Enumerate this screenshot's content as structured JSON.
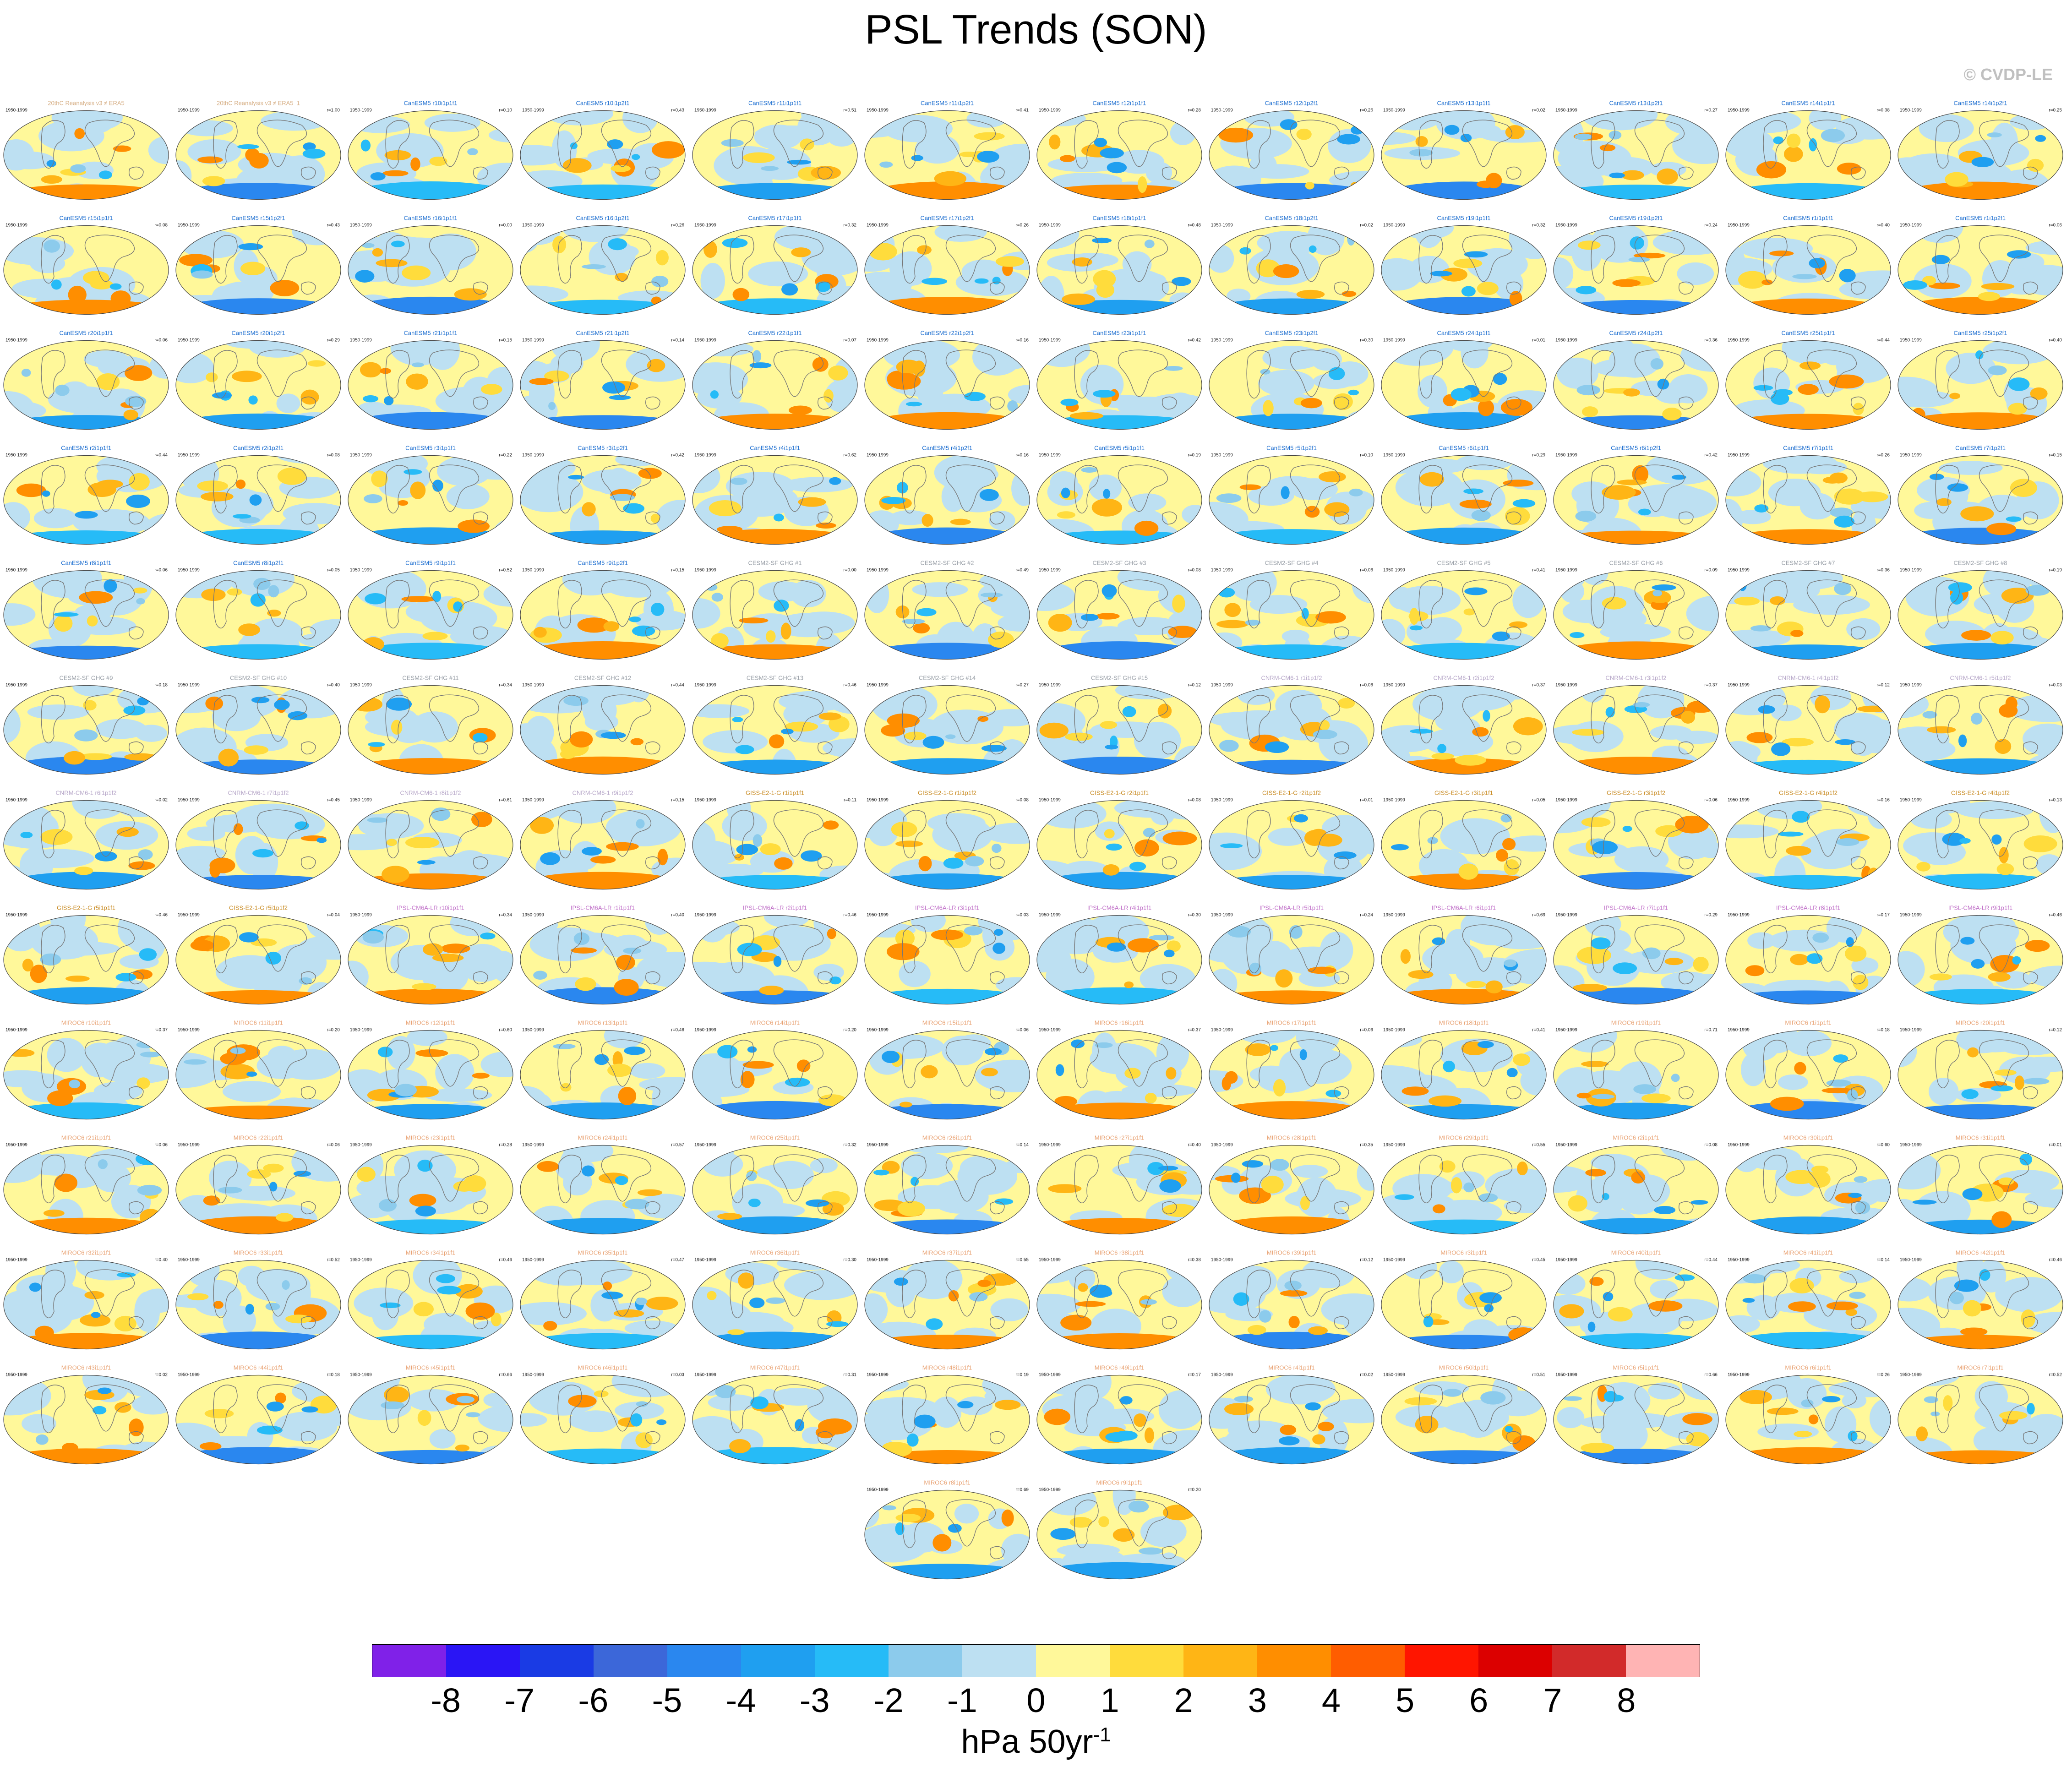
{
  "title": "PSL Trends (SON)",
  "credit": "© CVDP-LE",
  "colorbar": {
    "colors": [
      "#8021e8",
      "#2a15f5",
      "#1a3be4",
      "#3c67d9",
      "#2a87ef",
      "#1f9ff0",
      "#26bbf7",
      "#8ccbec",
      "#bde0f2",
      "#fff89a",
      "#ffdc3c",
      "#ffb515",
      "#ff8e00",
      "#ff5d00",
      "#ff1500",
      "#dc0000",
      "#d22a2a",
      "#ffb4b4"
    ],
    "ticks": [
      "-8",
      "-7",
      "-6",
      "-5",
      "-4",
      "-3",
      "-2",
      "-1",
      "0",
      "1",
      "2",
      "3",
      "4",
      "5",
      "6",
      "7",
      "8"
    ],
    "units_base": "hPa 50yr",
    "units_exp": "-1"
  },
  "chart_data": {
    "type": "heatmap",
    "title": "PSL Trends (SON)",
    "period": "1950-1999",
    "color_scale": {
      "min": -8,
      "max": 8,
      "step": 1,
      "units": "hPa 50yr-1"
    },
    "panels": [
      {
        "name": "20thC Reanalysis v3 ≠ ERA5",
        "r": ""
      },
      {
        "name": "20thC Reanalysis v3 ≠ ERA5_1",
        "r": "r=1.00"
      },
      {
        "name": "CanESM5 r10i1p1f1",
        "r": "r=0.10"
      },
      {
        "name": "CanESM5 r10i1p2f1",
        "r": "r=0.43"
      },
      {
        "name": "CanESM5 r11i1p1f1",
        "r": "r=0.51"
      },
      {
        "name": "CanESM5 r11i1p2f1",
        "r": "r=0.41"
      },
      {
        "name": "CanESM5 r12i1p1f1",
        "r": "r=0.28"
      },
      {
        "name": "CanESM5 r12i1p2f1",
        "r": "r=0.26"
      },
      {
        "name": "CanESM5 r13i1p1f1",
        "r": "r=0.02"
      },
      {
        "name": "CanESM5 r13i1p2f1",
        "r": "r=0.27"
      },
      {
        "name": "CanESM5 r14i1p1f1",
        "r": "r=0.38"
      },
      {
        "name": "CanESM5 r14i1p2f1",
        "r": "r=0.25"
      },
      {
        "name": "CanESM5 r15i1p1f1",
        "r": "r=0.08"
      },
      {
        "name": "CanESM5 r15i1p2f1",
        "r": "r=0.43"
      },
      {
        "name": "CanESM5 r16i1p1f1",
        "r": "r=0.00"
      },
      {
        "name": "CanESM5 r16i1p2f1",
        "r": "r=0.26"
      },
      {
        "name": "CanESM5 r17i1p1f1",
        "r": "r=0.32"
      },
      {
        "name": "CanESM5 r17i1p2f1",
        "r": "r=0.26"
      },
      {
        "name": "CanESM5 r18i1p1f1",
        "r": "r=0.48"
      },
      {
        "name": "CanESM5 r18i1p2f1",
        "r": "r=0.02"
      },
      {
        "name": "CanESM5 r19i1p1f1",
        "r": "r=0.32"
      },
      {
        "name": "CanESM5 r19i1p2f1",
        "r": "r=0.24"
      },
      {
        "name": "CanESM5 r1i1p1f1",
        "r": "r=0.40"
      },
      {
        "name": "CanESM5 r1i1p2f1",
        "r": "r=0.06"
      },
      {
        "name": "CanESM5 r20i1p1f1",
        "r": "r=0.06"
      },
      {
        "name": "CanESM5 r20i1p2f1",
        "r": "r=0.29"
      },
      {
        "name": "CanESM5 r21i1p1f1",
        "r": "r=0.15"
      },
      {
        "name": "CanESM5 r21i1p2f1",
        "r": "r=0.14"
      },
      {
        "name": "CanESM5 r22i1p1f1",
        "r": "r=0.07"
      },
      {
        "name": "CanESM5 r22i1p2f1",
        "r": "r=0.16"
      },
      {
        "name": "CanESM5 r23i1p1f1",
        "r": "r=0.42"
      },
      {
        "name": "CanESM5 r23i1p2f1",
        "r": "r=0.30"
      },
      {
        "name": "CanESM5 r24i1p1f1",
        "r": "r=0.01"
      },
      {
        "name": "CanESM5 r24i1p2f1",
        "r": "r=0.36"
      },
      {
        "name": "CanESM5 r25i1p1f1",
        "r": "r=0.44"
      },
      {
        "name": "CanESM5 r25i1p2f1",
        "r": "r=0.40"
      },
      {
        "name": "CanESM5 r2i1p1f1",
        "r": "r=0.44"
      },
      {
        "name": "CanESM5 r2i1p2f1",
        "r": "r=0.08"
      },
      {
        "name": "CanESM5 r3i1p1f1",
        "r": "r=0.22"
      },
      {
        "name": "CanESM5 r3i1p2f1",
        "r": "r=0.42"
      },
      {
        "name": "CanESM5 r4i1p1f1",
        "r": "r=0.62"
      },
      {
        "name": "CanESM5 r4i1p2f1",
        "r": "r=0.16"
      },
      {
        "name": "CanESM5 r5i1p1f1",
        "r": "r=0.19"
      },
      {
        "name": "CanESM5 r5i1p2f1",
        "r": "r=0.10"
      },
      {
        "name": "CanESM5 r6i1p1f1",
        "r": "r=0.29"
      },
      {
        "name": "CanESM5 r6i1p2f1",
        "r": "r=0.42"
      },
      {
        "name": "CanESM5 r7i1p1f1",
        "r": "r=0.26"
      },
      {
        "name": "CanESM5 r7i1p2f1",
        "r": "r=0.15"
      },
      {
        "name": "CanESM5 r8i1p1f1",
        "r": "r=0.06"
      },
      {
        "name": "CanESM5 r8i1p2f1",
        "r": "r=0.05"
      },
      {
        "name": "CanESM5 r9i1p1f1",
        "r": "r=0.52"
      },
      {
        "name": "CanESM5 r9i1p2f1",
        "r": "r=0.15"
      },
      {
        "name": "CESM2-SF GHG #1",
        "r": "r=0.00"
      },
      {
        "name": "CESM2-SF GHG #2",
        "r": "r=0.49"
      },
      {
        "name": "CESM2-SF GHG #3",
        "r": "r=0.08"
      },
      {
        "name": "CESM2-SF GHG #4",
        "r": "r=0.06"
      },
      {
        "name": "CESM2-SF GHG #5",
        "r": "r=0.41"
      },
      {
        "name": "CESM2-SF GHG #6",
        "r": "r=0.09"
      },
      {
        "name": "CESM2-SF GHG #7",
        "r": "r=0.36"
      },
      {
        "name": "CESM2-SF GHG #8",
        "r": "r=0.19"
      },
      {
        "name": "CESM2-SF GHG #9",
        "r": "r=0.18"
      },
      {
        "name": "CESM2-SF GHG #10",
        "r": "r=0.40"
      },
      {
        "name": "CESM2-SF GHG #11",
        "r": "r=0.34"
      },
      {
        "name": "CESM2-SF GHG #12",
        "r": "r=0.44"
      },
      {
        "name": "CESM2-SF GHG #13",
        "r": "r=0.46"
      },
      {
        "name": "CESM2-SF GHG #14",
        "r": "r=0.27"
      },
      {
        "name": "CESM2-SF GHG #15",
        "r": "r=0.12"
      },
      {
        "name": "CNRM-CM6-1 r1i1p1f2",
        "r": "r=0.06"
      },
      {
        "name": "CNRM-CM6-1 r2i1p1f2",
        "r": "r=0.37"
      },
      {
        "name": "CNRM-CM6-1 r3i1p1f2",
        "r": "r=0.37"
      },
      {
        "name": "CNRM-CM6-1 r4i1p1f2",
        "r": "r=0.12"
      },
      {
        "name": "CNRM-CM6-1 r5i1p1f2",
        "r": "r=0.03"
      },
      {
        "name": "CNRM-CM6-1 r6i1p1f2",
        "r": "r=0.02"
      },
      {
        "name": "CNRM-CM6-1 r7i1p1f2",
        "r": "r=0.45"
      },
      {
        "name": "CNRM-CM6-1 r8i1p1f2",
        "r": "r=0.61"
      },
      {
        "name": "CNRM-CM6-1 r9i1p1f2",
        "r": "r=0.15"
      },
      {
        "name": "GISS-E2-1-G r1i1p1f1",
        "r": "r=0.11"
      },
      {
        "name": "GISS-E2-1-G r1i1p1f2",
        "r": "r=0.08"
      },
      {
        "name": "GISS-E2-1-G r2i1p1f1",
        "r": "r=0.08"
      },
      {
        "name": "GISS-E2-1-G r2i1p1f2",
        "r": "r=0.01"
      },
      {
        "name": "GISS-E2-1-G r3i1p1f1",
        "r": "r=0.05"
      },
      {
        "name": "GISS-E2-1-G r3i1p1f2",
        "r": "r=0.06"
      },
      {
        "name": "GISS-E2-1-G r4i1p1f2",
        "r": "r=0.16"
      },
      {
        "name": "GISS-E2-1-G r4i1p1f2",
        "r": "r=0.13"
      },
      {
        "name": "GISS-E2-1-G r5i1p1f1",
        "r": "r=0.46"
      },
      {
        "name": "GISS-E2-1-G r5i1p1f2",
        "r": "r=0.04"
      },
      {
        "name": "IPSL-CM6A-LR r10i1p1f1",
        "r": "r=0.34"
      },
      {
        "name": "IPSL-CM6A-LR r1i1p1f1",
        "r": "r=0.40"
      },
      {
        "name": "IPSL-CM6A-LR r2i1p1f1",
        "r": "r=0.46"
      },
      {
        "name": "IPSL-CM6A-LR r3i1p1f1",
        "r": "r=0.03"
      },
      {
        "name": "IPSL-CM6A-LR r4i1p1f1",
        "r": "r=0.30"
      },
      {
        "name": "IPSL-CM6A-LR r5i1p1f1",
        "r": "r=0.24"
      },
      {
        "name": "IPSL-CM6A-LR r6i1p1f1",
        "r": "r=0.69"
      },
      {
        "name": "IPSL-CM6A-LR r7i1p1f1",
        "r": "r=0.29"
      },
      {
        "name": "IPSL-CM6A-LR r8i1p1f1",
        "r": "r=0.17"
      },
      {
        "name": "IPSL-CM6A-LR r9i1p1f1",
        "r": "r=0.46"
      },
      {
        "name": "MIROC6 r10i1p1f1",
        "r": "r=0.37"
      },
      {
        "name": "MIROC6 r11i1p1f1",
        "r": "r=0.20"
      },
      {
        "name": "MIROC6 r12i1p1f1",
        "r": "r=0.60"
      },
      {
        "name": "MIROC6 r13i1p1f1",
        "r": "r=0.46"
      },
      {
        "name": "MIROC6 r14i1p1f1",
        "r": "r=0.20"
      },
      {
        "name": "MIROC6 r15i1p1f1",
        "r": "r=0.06"
      },
      {
        "name": "MIROC6 r16i1p1f1",
        "r": "r=0.37"
      },
      {
        "name": "MIROC6 r17i1p1f1",
        "r": "r=0.06"
      },
      {
        "name": "MIROC6 r18i1p1f1",
        "r": "r=0.41"
      },
      {
        "name": "MIROC6 r19i1p1f1",
        "r": "r=0.71"
      },
      {
        "name": "MIROC6 r1i1p1f1",
        "r": "r=0.18"
      },
      {
        "name": "MIROC6 r20i1p1f1",
        "r": "r=0.12"
      },
      {
        "name": "MIROC6 r21i1p1f1",
        "r": "r=0.06"
      },
      {
        "name": "MIROC6 r22i1p1f1",
        "r": "r=0.06"
      },
      {
        "name": "MIROC6 r23i1p1f1",
        "r": "r=0.28"
      },
      {
        "name": "MIROC6 r24i1p1f1",
        "r": "r=0.57"
      },
      {
        "name": "MIROC6 r25i1p1f1",
        "r": "r=0.32"
      },
      {
        "name": "MIROC6 r26i1p1f1",
        "r": "r=0.14"
      },
      {
        "name": "MIROC6 r27i1p1f1",
        "r": "r=0.40"
      },
      {
        "name": "MIROC6 r28i1p1f1",
        "r": "r=0.35"
      },
      {
        "name": "MIROC6 r29i1p1f1",
        "r": "r=0.55"
      },
      {
        "name": "MIROC6 r2i1p1f1",
        "r": "r=0.08"
      },
      {
        "name": "MIROC6 r30i1p1f1",
        "r": "r=0.60"
      },
      {
        "name": "MIROC6 r31i1p1f1",
        "r": "r=0.01"
      },
      {
        "name": "MIROC6 r32i1p1f1",
        "r": "r=0.40"
      },
      {
        "name": "MIROC6 r33i1p1f1",
        "r": "r=0.52"
      },
      {
        "name": "MIROC6 r34i1p1f1",
        "r": "r=0.46"
      },
      {
        "name": "MIROC6 r35i1p1f1",
        "r": "r=0.47"
      },
      {
        "name": "MIROC6 r36i1p1f1",
        "r": "r=0.30"
      },
      {
        "name": "MIROC6 r37i1p1f1",
        "r": "r=0.55"
      },
      {
        "name": "MIROC6 r38i1p1f1",
        "r": "r=0.38"
      },
      {
        "name": "MIROC6 r39i1p1f1",
        "r": "r=0.12"
      },
      {
        "name": "MIROC6 r3i1p1f1",
        "r": "r=0.45"
      },
      {
        "name": "MIROC6 r40i1p1f1",
        "r": "r=0.44"
      },
      {
        "name": "MIROC6 r41i1p1f1",
        "r": "r=0.14"
      },
      {
        "name": "MIROC6 r42i1p1f1",
        "r": "r=0.46"
      },
      {
        "name": "MIROC6 r43i1p1f1",
        "r": "r=0.02"
      },
      {
        "name": "MIROC6 r44i1p1f1",
        "r": "r=0.18"
      },
      {
        "name": "MIROC6 r45i1p1f1",
        "r": "r=0.66"
      },
      {
        "name": "MIROC6 r46i1p1f1",
        "r": "r=0.03"
      },
      {
        "name": "MIROC6 r47i1p1f1",
        "r": "r=0.31"
      },
      {
        "name": "MIROC6 r48i1p1f1",
        "r": "r=0.19"
      },
      {
        "name": "MIROC6 r49i1p1f1",
        "r": "r=0.17"
      },
      {
        "name": "MIROC6 r4i1p1f1",
        "r": "r=0.02"
      },
      {
        "name": "MIROC6 r50i1p1f1",
        "r": "r=0.51"
      },
      {
        "name": "MIROC6 r5i1p1f1",
        "r": "r=0.66"
      },
      {
        "name": "MIROC6 r6i1p1f1",
        "r": "r=0.26"
      },
      {
        "name": "MIROC6 r7i1p1f1",
        "r": "r=0.52"
      },
      {
        "name": "MIROC6 r8i1p1f1",
        "r": "r=0.69"
      },
      {
        "name": "MIROC6 r9i1p1f1",
        "r": "r=0.20"
      }
    ]
  }
}
